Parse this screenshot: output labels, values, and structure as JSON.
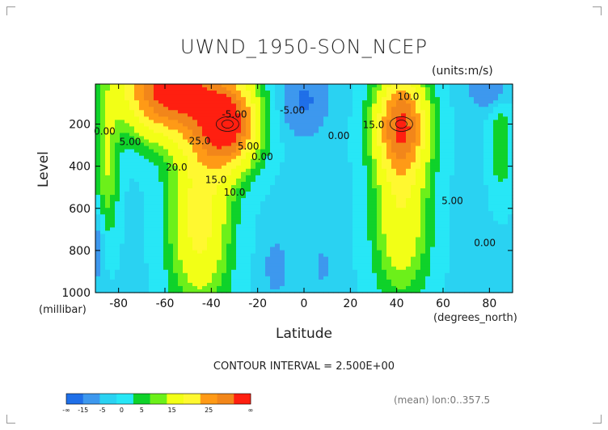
{
  "chart_data": {
    "type": "contour",
    "title": "UWND_1950-SON_NCEP",
    "units_label": "(units:m/s)",
    "xlabel": "Latitude",
    "x_unit_label": "(degrees_north)",
    "ylabel": "Level",
    "y_unit_label": "(millibar)",
    "xlim": [
      -90,
      90
    ],
    "ylim": [
      1000,
      10
    ],
    "x_ticks": [
      -80,
      -60,
      -40,
      -20,
      0,
      20,
      40,
      60,
      80
    ],
    "y_ticks": [
      200,
      400,
      600,
      800,
      1000
    ],
    "contour_interval_text": "CONTOUR INTERVAL = 2.500E+00",
    "contour_labels": [
      "-5.00",
      "0.00",
      "5.00",
      "10.0",
      "15.0",
      "20.0",
      "25.0"
    ],
    "jets": [
      {
        "name_hint": "southern",
        "lat": -33,
        "pressure": 200,
        "peak": 27
      },
      {
        "name_hint": "northern",
        "lat": 42,
        "pressure": 200,
        "peak": 26
      }
    ],
    "colorbar": {
      "labels": [
        "-∞",
        "-15",
        "-5",
        "0",
        "5",
        "15",
        "25",
        "∞"
      ],
      "colors": [
        "#1f6fe8",
        "#3d98ee",
        "#2ad2f2",
        "#27e7f6",
        "#0fd22a",
        "#6cf01a",
        "#f2ff16",
        "#fff830",
        "#ff9a16",
        "#f2861a",
        "#ff1f10"
      ]
    },
    "footer_text": "(mean) lon:0..357.5"
  }
}
